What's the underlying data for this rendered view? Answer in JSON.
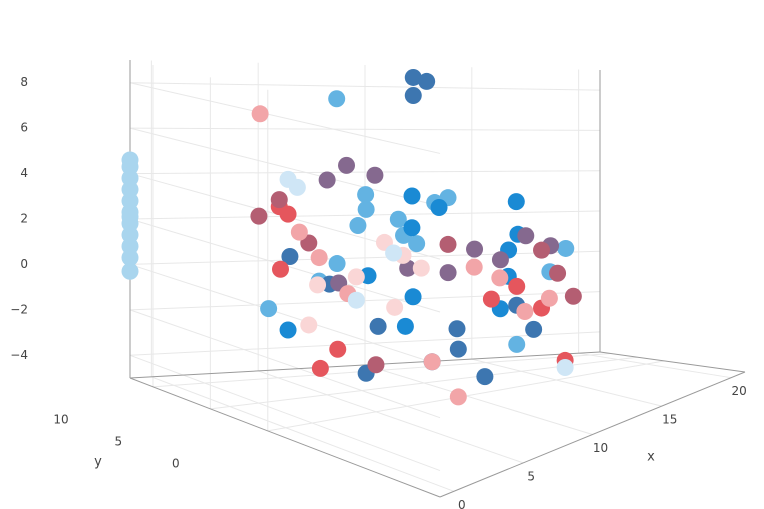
{
  "chart_data": {
    "type": "scatter3d",
    "x_label": "x",
    "y_label": "y",
    "xlim": [
      -1,
      21
    ],
    "ylim": [
      -15,
      12
    ],
    "zlim": [
      -5,
      9
    ],
    "xticks": [
      0,
      5,
      10,
      15,
      20
    ],
    "yticks": [
      0,
      5,
      10
    ],
    "zticks": [
      {
        "value": -4,
        "label": "−4"
      },
      {
        "value": -2,
        "label": "−2"
      },
      0,
      2,
      4,
      6,
      8
    ],
    "grid": true,
    "series": [
      {
        "color": "#a9d5ee",
        "x": [
          -1,
          -1,
          -1,
          -1,
          -1,
          -1,
          -1,
          -1,
          -1,
          -1,
          -1,
          -1
        ],
        "y": [
          12,
          12,
          12,
          12,
          12,
          12,
          12,
          12,
          12,
          12,
          12,
          12
        ],
        "z": [
          -0.3,
          0.3,
          0.8,
          1.3,
          1.8,
          2.3,
          2.8,
          3.3,
          3.8,
          4.3,
          2.1,
          4.6
        ]
      },
      {
        "color": "#63b3e2",
        "x": [
          4,
          5,
          6,
          5.5,
          6.5,
          7,
          4.5,
          3,
          2,
          8,
          13,
          12.5,
          11,
          5,
          7.5
        ],
        "y": [
          0,
          1,
          -1,
          2,
          0.5,
          -0.5,
          3,
          2,
          5,
          -2,
          -6,
          -5,
          -4,
          4,
          -1.5
        ],
        "z": [
          3,
          3.5,
          2.5,
          4,
          3,
          2,
          1,
          0.5,
          -1,
          4,
          1.5,
          0.5,
          -2.5,
          8,
          3.8
        ]
      },
      {
        "color": "#1a8ad4",
        "x": [
          7,
          8,
          7.5,
          6,
          5,
          11,
          12,
          10.5,
          14,
          3,
          9,
          4
        ],
        "y": [
          0,
          -1,
          1,
          -2,
          -3,
          -3,
          -2,
          -4,
          3,
          5,
          -6,
          -1
        ],
        "z": [
          4,
          3.5,
          2.5,
          0,
          -1,
          1.5,
          2,
          0.5,
          3,
          -2,
          -0.5,
          1
        ]
      },
      {
        "color": "#3d76b0",
        "x": [
          9,
          9.7,
          9,
          3,
          4,
          6,
          7,
          8,
          10,
          12,
          5,
          2,
          7.5
        ],
        "y": [
          4,
          4,
          4,
          1,
          -2,
          -4,
          -5,
          -3,
          -6,
          -4,
          1,
          3,
          -7
        ],
        "z": [
          8.8,
          8.6,
          8,
          0.5,
          -1,
          -2.5,
          -2,
          -1.5,
          -0.5,
          -2,
          -3.5,
          1.5,
          -3
        ]
      },
      {
        "color": "#85698f",
        "x": [
          5,
          6,
          4.5,
          10,
          11,
          12,
          13,
          9,
          6.5,
          3.5
        ],
        "y": [
          3,
          2,
          4,
          -1,
          -2,
          -3,
          -4,
          0,
          -0.5,
          1
        ],
        "z": [
          5.2,
          4.8,
          4.5,
          1.5,
          1,
          2,
          1.5,
          0.5,
          1,
          0.5
        ]
      },
      {
        "color": "#e5565d",
        "x": [
          2,
          3,
          1.5,
          11,
          12,
          10,
          12,
          4,
          2.5
        ],
        "y": [
          4,
          5,
          3,
          -4,
          -5,
          -3,
          -8,
          2,
          1
        ],
        "z": [
          3.5,
          3,
          1,
          0,
          -1,
          -0.5,
          -3,
          -2.5,
          -3
        ]
      },
      {
        "color": "#b45e72",
        "x": [
          2,
          1.5,
          3,
          12.5,
          13,
          12,
          5,
          8
        ],
        "y": [
          4,
          5,
          3,
          -6,
          -7,
          -5,
          0,
          -2
        ],
        "z": [
          3.8,
          3,
          2,
          0.5,
          -0.5,
          1.5,
          -3,
          2
        ]
      },
      {
        "color": "#f2a5a8",
        "x": [
          1,
          2.5,
          3,
          4,
          10,
          11,
          12,
          9,
          6,
          7
        ],
        "y": [
          4,
          3,
          2,
          1,
          -4,
          -5,
          -6,
          -3,
          -4,
          -5
        ],
        "z": [
          7.5,
          2.5,
          1.5,
          0,
          0.5,
          -1,
          -0.5,
          1,
          -2.5,
          -4
        ]
      },
      {
        "color": "#fad6d6",
        "x": [
          6,
          6.5,
          5,
          7,
          3,
          5.5,
          4
        ],
        "y": [
          1,
          0,
          2,
          -1,
          3,
          -1,
          4
        ],
        "z": [
          2,
          1.5,
          0.5,
          1,
          -1.5,
          -0.5,
          0
        ]
      },
      {
        "color": "#cfe6f6",
        "x": [
          4,
          3,
          6.5,
          5,
          12
        ],
        "y": [
          6,
          5,
          1,
          2,
          -8
        ],
        "z": [
          4,
          4.5,
          1.5,
          -0.5,
          -3.3
        ]
      }
    ]
  }
}
